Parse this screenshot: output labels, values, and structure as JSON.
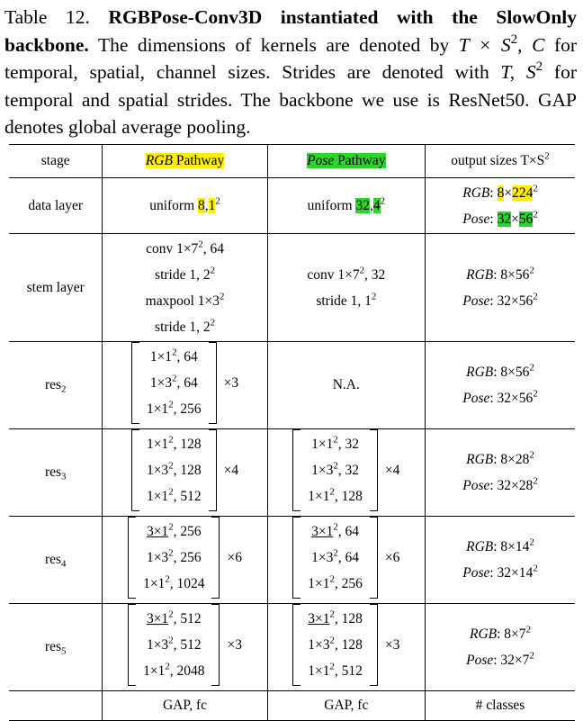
{
  "caption": {
    "label": "Table 12.",
    "bold": "RGBPose-Conv3D instantiated with the SlowOnly backbone.",
    "text_a": "The dimensions of kernels are denoted by",
    "math_a": "T × S",
    "math_a_sup": "2",
    "math_a_tail": ", C",
    "text_b": "for temporal, spatial, channel sizes. Strides are denoted with",
    "math_b": "T, S",
    "math_b_sup": "2",
    "text_c": "for temporal and spatial strides. The backbone we use is ResNet50. GAP denotes global average pooling."
  },
  "header": {
    "stage": "stage",
    "rgb_italic": "RGB",
    "rgb_rest": " Pathway",
    "pose_italic": "Pose",
    "pose_rest": " Pathway",
    "output": "output sizes T×S",
    "output_sup": "2"
  },
  "rows": {
    "data": {
      "stage": "data layer",
      "rgb_pre": "uniform ",
      "rgb_a": "8",
      "rgb_sep": ",",
      "rgb_b": "1",
      "rgb_sup": "2",
      "pose_pre": "uniform ",
      "pose_a": "32",
      "pose_sep": ",",
      "pose_b": "4",
      "pose_sup": "2",
      "out_rgb_label": "RGB",
      "out_rgb_pre": ": ",
      "out_rgb_a": "8",
      "out_rgb_x": "×",
      "out_rgb_b": "224",
      "out_rgb_sup": "2",
      "out_pose_label": "Pose",
      "out_pose_pre": ": ",
      "out_pose_a": "32",
      "out_pose_x": "×",
      "out_pose_b": "56",
      "out_pose_sup": "2"
    },
    "stem": {
      "stage": "stem layer",
      "rgb_1": "conv 1×7",
      "rgb_1_tail": ", 64",
      "rgb_2": "stride 1, 2",
      "rgb_3": "maxpool 1×3",
      "rgb_4": "stride 1, 2",
      "pose_1": "conv 1×7",
      "pose_1_tail": ", 32",
      "pose_2": "stride 1, 1",
      "out_rgb_label": "RGB",
      "out_rgb_val": ": 8×56",
      "out_pose_label": "Pose",
      "out_pose_val": ": 32×56"
    },
    "res2": {
      "stage": "res",
      "stage_sub": "2",
      "rgb": [
        "1×1",
        ", 64",
        "1×3",
        ", 64",
        "1×1",
        ", 256"
      ],
      "rgb_mult": "×3",
      "pose": "N.A.",
      "out_rgb_label": "RGB",
      "out_rgb_val": ": 8×56",
      "out_pose_label": "Pose",
      "out_pose_val": ": 32×56"
    },
    "res3": {
      "stage": "res",
      "stage_sub": "3",
      "rgb": [
        "1×1",
        ", 128",
        "1×3",
        ", 128",
        "1×1",
        ", 512"
      ],
      "rgb_mult": "×4",
      "pose": [
        "1×1",
        ", 32",
        "1×3",
        ", 32",
        "1×1",
        ", 128"
      ],
      "pose_mult": "×4",
      "out_rgb_label": "RGB",
      "out_rgb_val": ": 8×28",
      "out_pose_label": "Pose",
      "out_pose_val": ": 32×28"
    },
    "res4": {
      "stage": "res",
      "stage_sub": "4",
      "rgb": [
        "3×1",
        ", 256",
        "1×3",
        ", 256",
        "1×1",
        ", 1024"
      ],
      "rgb_mult": "×6",
      "pose": [
        "3×1",
        ", 64",
        "1×3",
        ", 64",
        "1×1",
        ", 256"
      ],
      "pose_mult": "×6",
      "out_rgb_label": "RGB",
      "out_rgb_val": ": 8×14",
      "out_pose_label": "Pose",
      "out_pose_val": ": 32×14"
    },
    "res5": {
      "stage": "res",
      "stage_sub": "5",
      "rgb": [
        "3×1",
        ", 512",
        "1×3",
        ", 512",
        "1×1",
        ", 2048"
      ],
      "rgb_mult": "×3",
      "pose": [
        "3×1",
        ", 128",
        "1×3",
        ", 128",
        "1×1",
        ", 512"
      ],
      "pose_mult": "×3",
      "out_rgb_label": "RGB",
      "out_rgb_val": ": 8×7",
      "out_pose_label": "Pose",
      "out_pose_val": ": 32×7"
    },
    "last": {
      "rgb": "GAP, fc",
      "pose": "GAP, fc",
      "out": "# classes"
    }
  },
  "sup2": "2",
  "colors": {
    "highlight_yellow": "#ffee00",
    "highlight_green": "#2bd62b"
  }
}
